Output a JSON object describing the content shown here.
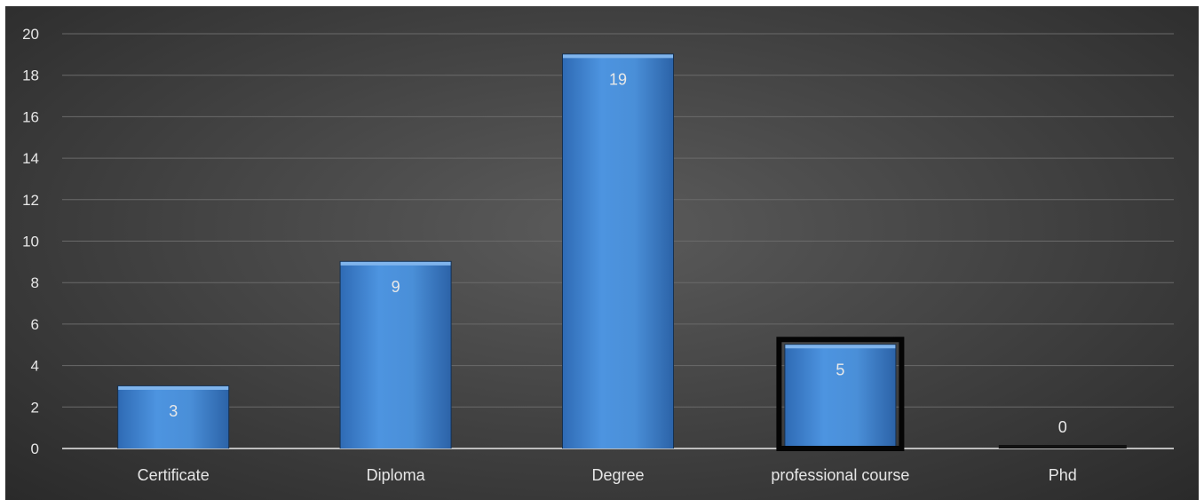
{
  "chart_data": {
    "type": "bar",
    "title": "",
    "xlabel": "",
    "ylabel": "",
    "categories": [
      "Certificate",
      "Diploma",
      "Degree",
      "professional course",
      "Phd"
    ],
    "values": [
      3,
      9,
      19,
      5,
      0
    ],
    "data_labels": [
      "3",
      "9",
      "19",
      "5",
      "0"
    ],
    "ylim": [
      0,
      20
    ],
    "yticks": [
      "0",
      "2",
      "4",
      "6",
      "8",
      "10",
      "12",
      "14",
      "16",
      "18",
      "20"
    ],
    "grid": true,
    "legend": "none",
    "colors": {
      "bar": "#4a8fd8",
      "bar_edge": "#1d3f6e",
      "background": "#454545",
      "text": "#e6e6e6"
    }
  }
}
